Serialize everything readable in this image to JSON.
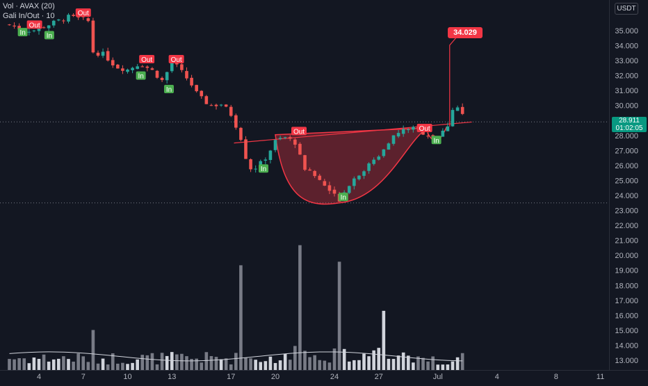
{
  "header": {
    "indicator_title": "Vol · AVAX (20)",
    "overlay_title": "Gali In/Out · 10",
    "currency": "USDT"
  },
  "price_badge": {
    "price": "28.911",
    "countdown": "01:02:05"
  },
  "target_label": "34.029",
  "chart_data": {
    "type": "candlestick",
    "y_axis": {
      "range": [
        12.3,
        36.6
      ],
      "ticks": [
        35.0,
        34.0,
        33.0,
        32.0,
        31.0,
        30.0,
        29.0,
        28.0,
        27.0,
        26.0,
        25.0,
        24.0,
        23.0,
        22.0,
        21.0,
        20.0,
        19.0,
        18.0,
        17.0,
        16.0,
        15.0,
        14.0,
        13.0
      ],
      "tick_labels": [
        "35.000",
        "34.000",
        "33.000",
        "32.000",
        "31.000",
        "30.000",
        "29.000",
        "28.000",
        "27.000",
        "26.000",
        "25.000",
        "24.000",
        "23.000",
        "22.000",
        "21.000",
        "20.000",
        "19.000",
        "18.000",
        "17.000",
        "16.000",
        "15.000",
        "14.000",
        "13.000"
      ]
    },
    "x_axis": {
      "tick_labels": [
        "4",
        "7",
        "10",
        "13",
        "17",
        "20",
        "24",
        "27",
        "Jul",
        "4",
        "8",
        "11"
      ]
    },
    "colors": {
      "up": "#26a69a",
      "down": "#ef5350",
      "volume_up": "#d1d4dc",
      "volume_down": "#787b86",
      "marker_out": "#f23645",
      "marker_in": "#4caf50",
      "pattern": "#f23645"
    },
    "current_price": 28.911,
    "target_price": 34.029,
    "reference_low": 23.5,
    "cup_pattern": {
      "rim_left": [
        20,
        28.05
      ],
      "rim_right": [
        31.8,
        28.6
      ],
      "bottom": [
        24.3,
        23.5
      ]
    },
    "handle": {
      "left": [
        30.3,
        28.2
      ],
      "bottom": [
        30.9,
        27.6
      ],
      "right": [
        31.6,
        28.6
      ]
    },
    "close_path": [
      [
        2.0,
        35.4
      ],
      [
        2.8,
        35.1
      ],
      [
        3.6,
        35.0
      ],
      [
        4.4,
        35.3
      ],
      [
        5.2,
        35.6
      ],
      [
        6.0,
        35.9
      ],
      [
        6.8,
        35.8
      ],
      [
        7.4,
        35.6
      ],
      [
        7.6,
        33.6
      ],
      [
        8.4,
        33.4
      ],
      [
        9.2,
        32.6
      ],
      [
        10.0,
        32.4
      ],
      [
        10.8,
        32.8
      ],
      [
        11.6,
        32.4
      ],
      [
        12.4,
        31.6
      ],
      [
        13.0,
        33.0
      ],
      [
        13.6,
        32.3
      ],
      [
        14.2,
        31.6
      ],
      [
        14.8,
        30.6
      ],
      [
        15.6,
        30.0
      ],
      [
        16.4,
        30.1
      ],
      [
        17.0,
        29.4
      ],
      [
        17.6,
        28.1
      ],
      [
        18.2,
        25.8
      ],
      [
        18.8,
        25.9
      ],
      [
        19.4,
        26.6
      ],
      [
        20.0,
        27.6
      ],
      [
        20.6,
        27.9
      ],
      [
        21.4,
        27.5
      ],
      [
        22.0,
        25.8
      ],
      [
        22.8,
        25.2
      ],
      [
        23.6,
        24.4
      ],
      [
        24.3,
        23.7
      ],
      [
        25.0,
        24.8
      ],
      [
        25.8,
        25.6
      ],
      [
        26.6,
        26.2
      ],
      [
        27.2,
        27.0
      ],
      [
        27.8,
        27.8
      ],
      [
        28.4,
        28.2
      ],
      [
        29.0,
        28.5
      ],
      [
        29.6,
        28.4
      ],
      [
        30.2,
        28.1
      ],
      [
        30.9,
        27.8
      ],
      [
        31.6,
        28.5
      ],
      [
        32.0,
        29.8
      ],
      [
        32.4,
        29.9
      ],
      [
        32.8,
        29.1
      ]
    ],
    "trade_signals": [
      {
        "label": "In",
        "x": 2.9,
        "y": 34.9
      },
      {
        "label": "Out",
        "x": 3.7,
        "y": 35.4
      },
      {
        "label": "In",
        "x": 4.7,
        "y": 34.7
      },
      {
        "label": "Out",
        "x": 7.0,
        "y": 36.2
      },
      {
        "label": "Out",
        "x": 11.3,
        "y": 33.1
      },
      {
        "label": "In",
        "x": 10.9,
        "y": 32.0
      },
      {
        "label": "Out",
        "x": 13.3,
        "y": 33.1
      },
      {
        "label": "In",
        "x": 12.8,
        "y": 31.1
      },
      {
        "label": "In",
        "x": 19.2,
        "y": 25.8
      },
      {
        "label": "Out",
        "x": 21.6,
        "y": 28.3
      },
      {
        "label": "In",
        "x": 24.6,
        "y": 23.9
      },
      {
        "label": "Out",
        "x": 30.1,
        "y": 28.5
      },
      {
        "label": "In",
        "x": 30.9,
        "y": 27.7
      }
    ],
    "volume_spikes": [
      {
        "x": 7.6,
        "value": 1.7
      },
      {
        "x": 17.6,
        "value": 4.4
      },
      {
        "x": 21.6,
        "value": 5.1
      },
      {
        "x": 24.3,
        "value": 4.4
      },
      {
        "x": 27.4,
        "value": 2.5
      }
    ]
  }
}
